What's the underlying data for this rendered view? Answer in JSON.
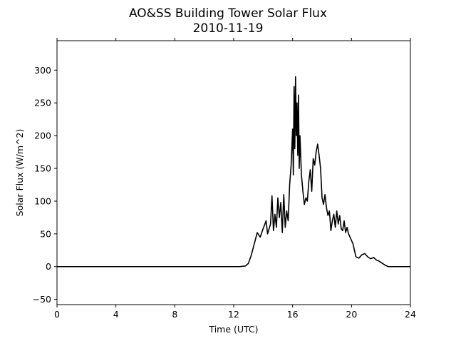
{
  "chart_data": {
    "type": "line",
    "title": "AO&SS Building Tower Solar Flux",
    "subtitle": "2010-11-19",
    "xlabel": "Time (UTC)",
    "ylabel": "Solar Flux (W/m^2)",
    "xlim": [
      0,
      24
    ],
    "ylim": [
      -58,
      345
    ],
    "x_ticks": [
      0,
      4,
      8,
      12,
      16,
      20,
      24
    ],
    "y_ticks": [
      -50,
      0,
      50,
      100,
      150,
      200,
      250,
      300
    ],
    "grid": false,
    "legend": "none",
    "line_color": "#000000",
    "series": [
      {
        "x": [
          0,
          12.4,
          12.8,
          13.0,
          13.2,
          13.4,
          13.6,
          13.8,
          14.0,
          14.2,
          14.3,
          14.5,
          14.6,
          14.7,
          14.8,
          14.9,
          15.0,
          15.1,
          15.2,
          15.3,
          15.4,
          15.5,
          15.6,
          15.7,
          15.8,
          15.9,
          16.0,
          16.05,
          16.1,
          16.15,
          16.2,
          16.25,
          16.3,
          16.35,
          16.4,
          16.45,
          16.5,
          16.6,
          16.7,
          16.8,
          16.9,
          17.0,
          17.1,
          17.2,
          17.3,
          17.4,
          17.5,
          17.6,
          17.7,
          17.8,
          17.9,
          18.0,
          18.1,
          18.2,
          18.3,
          18.4,
          18.5,
          18.6,
          18.7,
          18.8,
          18.9,
          19.0,
          19.1,
          19.2,
          19.3,
          19.4,
          19.5,
          19.6,
          19.7,
          19.8,
          19.9,
          20.0,
          20.1,
          20.2,
          20.3,
          20.5,
          20.7,
          20.9,
          21.1,
          21.3,
          21.5,
          21.7,
          21.9,
          22.1,
          22.3,
          22.5,
          22.7,
          23.0,
          24.0
        ],
        "y": [
          0,
          0,
          1,
          5,
          18,
          35,
          52,
          45,
          58,
          70,
          50,
          65,
          108,
          55,
          80,
          60,
          105,
          75,
          98,
          52,
          110,
          60,
          85,
          70,
          125,
          155,
          210,
          140,
          275,
          180,
          290,
          200,
          250,
          170,
          262,
          150,
          200,
          140,
          115,
          95,
          105,
          100,
          130,
          148,
          115,
          165,
          155,
          175,
          187,
          170,
          150,
          105,
          95,
          110,
          90,
          78,
          85,
          55,
          70,
          80,
          60,
          85,
          65,
          78,
          58,
          55,
          70,
          52,
          60,
          50,
          45,
          40,
          35,
          25,
          15,
          13,
          18,
          20,
          15,
          12,
          14,
          10,
          8,
          5,
          2,
          0,
          0,
          0,
          0
        ]
      }
    ]
  }
}
